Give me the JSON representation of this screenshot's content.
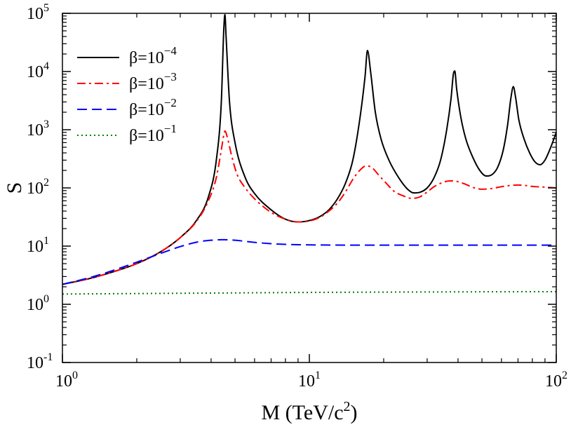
{
  "chart_data": {
    "type": "line",
    "title": "",
    "xlabel": "M (TeV/c",
    "xlabel_sup": "2",
    "xlabel_tail": ")",
    "ylabel": "S",
    "xscale": "log",
    "yscale": "log",
    "xlim": [
      1,
      100
    ],
    "ylim": [
      0.1,
      100000
    ],
    "grid": false,
    "legend_position": "top-left",
    "x_ticks": [
      {
        "value": 1,
        "base": "10",
        "exp": "0"
      },
      {
        "value": 10,
        "base": "10",
        "exp": "1"
      },
      {
        "value": 100,
        "base": "10",
        "exp": "2"
      }
    ],
    "y_ticks": [
      {
        "value": 0.1,
        "base": "10",
        "exp": "-1"
      },
      {
        "value": 1,
        "base": "10",
        "exp": "0"
      },
      {
        "value": 10,
        "base": "10",
        "exp": "1"
      },
      {
        "value": 100,
        "base": "10",
        "exp": "2"
      },
      {
        "value": 1000,
        "base": "10",
        "exp": "3"
      },
      {
        "value": 10000,
        "base": "10",
        "exp": "4"
      },
      {
        "value": 100000,
        "base": "10",
        "exp": "5"
      }
    ],
    "series": [
      {
        "name": "β=10^-4",
        "label_base": "β=10",
        "label_exp": "−4",
        "color": "#000000",
        "style": "solid",
        "points": [
          [
            1,
            2.2
          ],
          [
            1.3,
            2.8
          ],
          [
            1.6,
            3.6
          ],
          [
            2,
            5
          ],
          [
            2.5,
            8
          ],
          [
            3,
            14
          ],
          [
            3.5,
            28
          ],
          [
            3.9,
            70
          ],
          [
            4.2,
            300
          ],
          [
            4.4,
            3000
          ],
          [
            4.5,
            50000
          ],
          [
            4.55,
            95000
          ],
          [
            4.6,
            40000
          ],
          [
            4.75,
            3000
          ],
          [
            5,
            600
          ],
          [
            5.5,
            150
          ],
          [
            6,
            80
          ],
          [
            7,
            42
          ],
          [
            8,
            29
          ],
          [
            9,
            26
          ],
          [
            10,
            27.5
          ],
          [
            11,
            32
          ],
          [
            12,
            42
          ],
          [
            13,
            65
          ],
          [
            14,
            120
          ],
          [
            15,
            300
          ],
          [
            16,
            1500
          ],
          [
            16.8,
            8000
          ],
          [
            17.2,
            23000
          ],
          [
            17.7,
            10000
          ],
          [
            18.5,
            2000
          ],
          [
            19.5,
            700
          ],
          [
            21,
            300
          ],
          [
            23,
            150
          ],
          [
            25,
            95
          ],
          [
            26.5,
            82
          ],
          [
            28,
            84
          ],
          [
            30,
            100
          ],
          [
            32,
            150
          ],
          [
            34,
            300
          ],
          [
            36,
            1000
          ],
          [
            37.5,
            3500
          ],
          [
            38.3,
            9000
          ],
          [
            38.8,
            10200
          ],
          [
            39.5,
            5000
          ],
          [
            41,
            1700
          ],
          [
            43,
            700
          ],
          [
            46,
            330
          ],
          [
            49,
            200
          ],
          [
            52,
            160
          ],
          [
            55,
            170
          ],
          [
            58,
            230
          ],
          [
            61,
            450
          ],
          [
            63.5,
            1200
          ],
          [
            65.5,
            3500
          ],
          [
            67,
            5500
          ],
          [
            68.5,
            3500
          ],
          [
            70.5,
            1500
          ],
          [
            74,
            700
          ],
          [
            78,
            400
          ],
          [
            82,
            280
          ],
          [
            86,
            250
          ],
          [
            90,
            300
          ],
          [
            95,
            500
          ],
          [
            100,
            900
          ]
        ]
      },
      {
        "name": "β=10^-3",
        "label_base": "β=10",
        "label_exp": "−3",
        "color": "#ff0000",
        "style": "dashdot",
        "points": [
          [
            1,
            2.2
          ],
          [
            1.3,
            2.8
          ],
          [
            1.6,
            3.6
          ],
          [
            2,
            5
          ],
          [
            2.5,
            8
          ],
          [
            3,
            14
          ],
          [
            3.5,
            27
          ],
          [
            3.9,
            60
          ],
          [
            4.2,
            150
          ],
          [
            4.4,
            450
          ],
          [
            4.5,
            800
          ],
          [
            4.55,
            950
          ],
          [
            4.65,
            750
          ],
          [
            4.85,
            350
          ],
          [
            5.1,
            170
          ],
          [
            5.5,
            100
          ],
          [
            6,
            65
          ],
          [
            7,
            38
          ],
          [
            8,
            29
          ],
          [
            9,
            26
          ],
          [
            10,
            27
          ],
          [
            11,
            31
          ],
          [
            12,
            40
          ],
          [
            13,
            55
          ],
          [
            14,
            85
          ],
          [
            15,
            140
          ],
          [
            16,
            200
          ],
          [
            17,
            240
          ],
          [
            18,
            220
          ],
          [
            19,
            170
          ],
          [
            20.5,
            120
          ],
          [
            22,
            88
          ],
          [
            24,
            73
          ],
          [
            26,
            66
          ],
          [
            28,
            70
          ],
          [
            30,
            85
          ],
          [
            32,
            105
          ],
          [
            34,
            120
          ],
          [
            36,
            130
          ],
          [
            38,
            132
          ],
          [
            40,
            128
          ],
          [
            43,
            115
          ],
          [
            46,
            102
          ],
          [
            50,
            95
          ],
          [
            55,
            98
          ],
          [
            60,
            105
          ],
          [
            65,
            110
          ],
          [
            70,
            112
          ],
          [
            75,
            110
          ],
          [
            80,
            106
          ],
          [
            90,
            103
          ],
          [
            100,
            100
          ]
        ]
      },
      {
        "name": "β=10^-2",
        "label_base": "β=10",
        "label_exp": "−2",
        "color": "#0000ff",
        "style": "dashed",
        "points": [
          [
            1,
            2.2
          ],
          [
            1.3,
            2.9
          ],
          [
            1.6,
            3.8
          ],
          [
            2,
            5.3
          ],
          [
            2.5,
            7.5
          ],
          [
            3,
            9.8
          ],
          [
            3.5,
            11.7
          ],
          [
            4,
            12.6
          ],
          [
            4.5,
            12.9
          ],
          [
            5,
            12.6
          ],
          [
            6,
            11.6
          ],
          [
            7,
            11
          ],
          [
            8,
            10.7
          ],
          [
            10,
            10.5
          ],
          [
            15,
            10.4
          ],
          [
            20,
            10.4
          ],
          [
            30,
            10.4
          ],
          [
            50,
            10.4
          ],
          [
            70,
            10.4
          ],
          [
            100,
            10.4
          ]
        ]
      },
      {
        "name": "β=10^-1",
        "label_base": "β=10",
        "label_exp": "−1",
        "color": "#008000",
        "style": "dotted",
        "points": [
          [
            1,
            1.5
          ],
          [
            2,
            1.53
          ],
          [
            5,
            1.57
          ],
          [
            10,
            1.6
          ],
          [
            20,
            1.62
          ],
          [
            50,
            1.64
          ],
          [
            100,
            1.65
          ]
        ]
      }
    ]
  }
}
